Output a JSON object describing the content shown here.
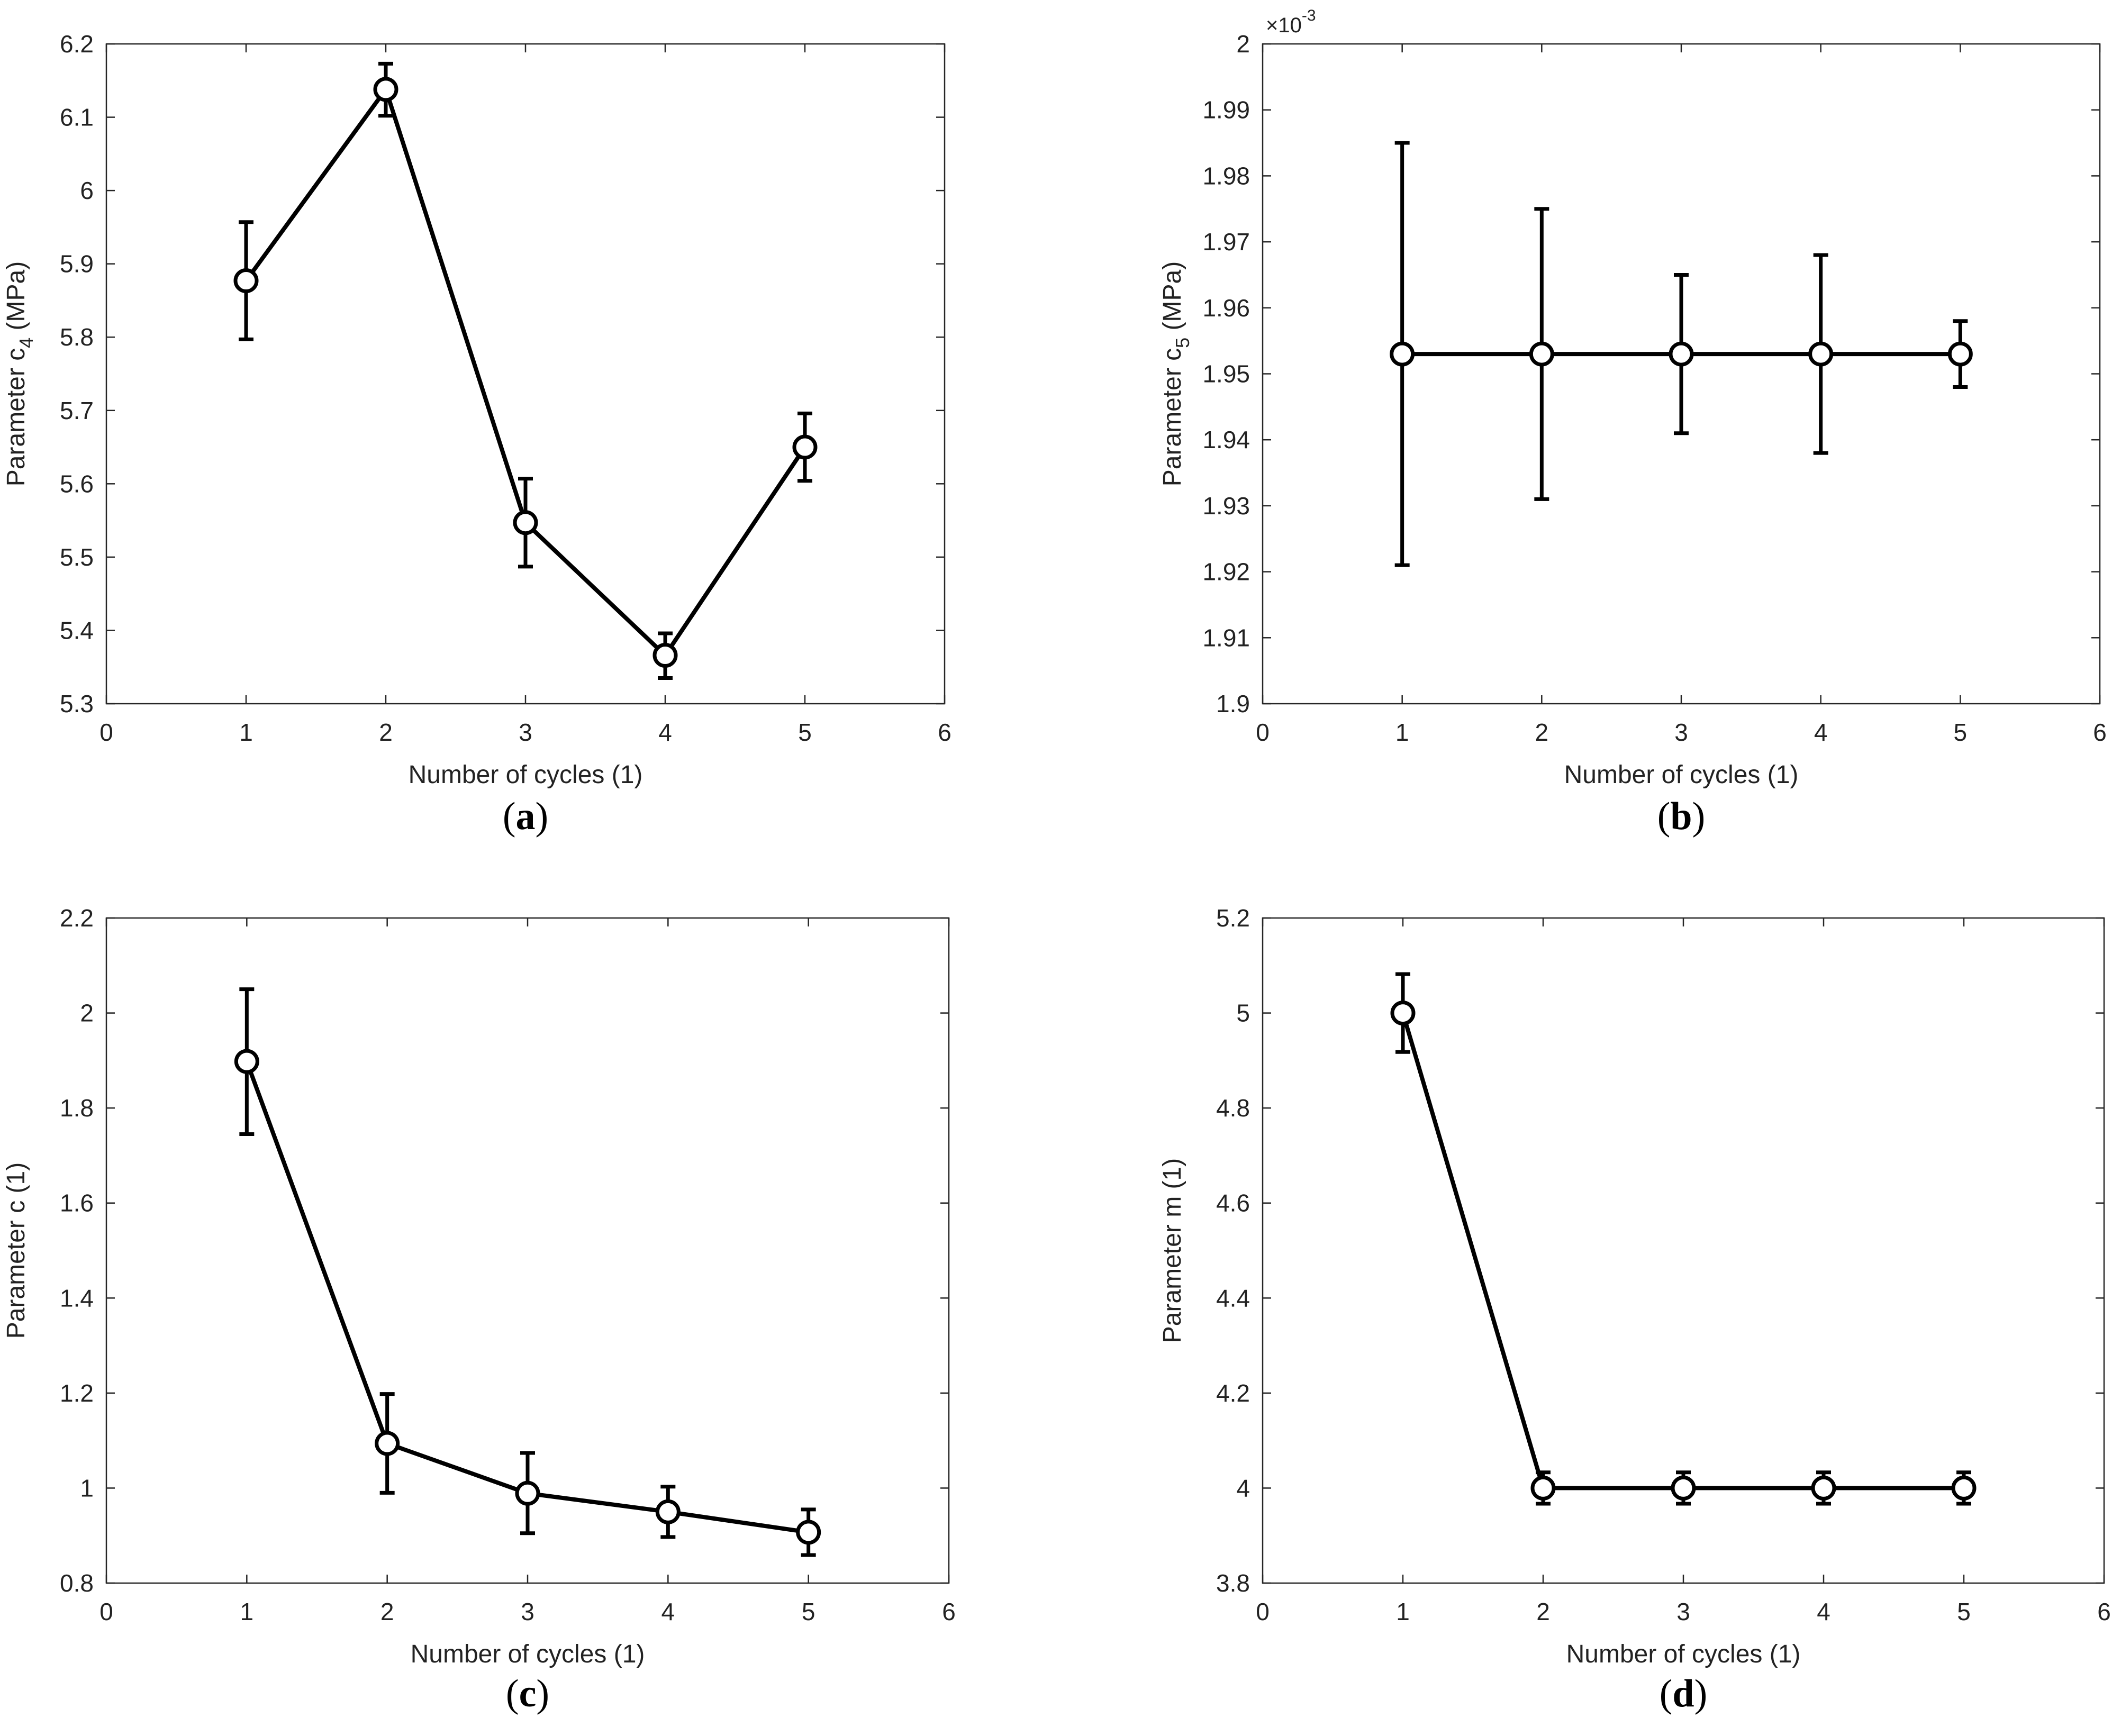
{
  "chart_data": [
    {
      "id": "a",
      "type": "line",
      "panel_label": "a",
      "xlabel": "Number of cycles (1)",
      "ylabel": {
        "main": "Parameter c",
        "sub": "4",
        "unit": " (MPa)"
      },
      "xlim": [
        0,
        6
      ],
      "ylim": [
        5.3,
        6.2
      ],
      "xticks": [
        0,
        1,
        2,
        3,
        4,
        5,
        6
      ],
      "xtick_labels": [
        "0",
        "1",
        "2",
        "3",
        "4",
        "5",
        "6"
      ],
      "yticks": [
        5.3,
        5.4,
        5.5,
        5.6,
        5.7,
        5.8,
        5.9,
        6.0,
        6.1,
        6.2
      ],
      "ytick_labels": [
        "5.3",
        "5.4",
        "5.5",
        "5.6",
        "5.7",
        "5.8",
        "5.9",
        "6",
        "6.1",
        "6.2"
      ],
      "exponent": "",
      "series": [
        {
          "name": "c4",
          "x": [
            1,
            2,
            3,
            4,
            5
          ],
          "y": [
            5.877,
            6.138,
            5.547,
            5.366,
            5.65
          ],
          "err_low": [
            5.797,
            6.102,
            5.487,
            5.335,
            5.604
          ],
          "err_high": [
            5.957,
            6.173,
            5.607,
            5.396,
            5.696
          ]
        }
      ]
    },
    {
      "id": "b",
      "type": "line",
      "panel_label": "b",
      "xlabel": "Number of cycles (1)",
      "ylabel": {
        "main": "Parameter c",
        "sub": "5",
        "unit": " (MPa)"
      },
      "xlim": [
        0,
        6
      ],
      "ylim": [
        1.9,
        2.0
      ],
      "xticks": [
        0,
        1,
        2,
        3,
        4,
        5,
        6
      ],
      "xtick_labels": [
        "0",
        "1",
        "2",
        "3",
        "4",
        "5",
        "6"
      ],
      "yticks": [
        1.9,
        1.91,
        1.92,
        1.93,
        1.94,
        1.95,
        1.96,
        1.97,
        1.98,
        1.99,
        2.0
      ],
      "ytick_labels": [
        "1.9",
        "1.91",
        "1.92",
        "1.93",
        "1.94",
        "1.95",
        "1.96",
        "1.97",
        "1.98",
        "1.99",
        "2"
      ],
      "exponent": "×10",
      "exponent_power": "-3",
      "series": [
        {
          "name": "c5",
          "x": [
            1,
            2,
            3,
            4,
            5
          ],
          "y": [
            1.953,
            1.953,
            1.953,
            1.953,
            1.953
          ],
          "err_low": [
            1.921,
            1.931,
            1.941,
            1.938,
            1.948
          ],
          "err_high": [
            1.985,
            1.975,
            1.965,
            1.968,
            1.958
          ]
        }
      ]
    },
    {
      "id": "c",
      "type": "line",
      "panel_label": "c",
      "xlabel": "Number of cycles (1)",
      "ylabel": {
        "main": "Parameter c (1)",
        "sub": "",
        "unit": ""
      },
      "xlim": [
        0,
        6
      ],
      "ylim": [
        0.8,
        2.2
      ],
      "xticks": [
        0,
        1,
        2,
        3,
        4,
        5,
        6
      ],
      "xtick_labels": [
        "0",
        "1",
        "2",
        "3",
        "4",
        "5",
        "6"
      ],
      "yticks": [
        0.8,
        1.0,
        1.2,
        1.4,
        1.6,
        1.8,
        2.0,
        2.2
      ],
      "ytick_labels": [
        "0.8",
        "1",
        "1.2",
        "1.4",
        "1.6",
        "1.8",
        "2",
        "2.2"
      ],
      "exponent": "",
      "series": [
        {
          "name": "c",
          "x": [
            1,
            2,
            3,
            4,
            5
          ],
          "y": [
            1.898,
            1.094,
            0.989,
            0.95,
            0.907
          ],
          "err_low": [
            1.745,
            0.99,
            0.905,
            0.897,
            0.859
          ],
          "err_high": [
            2.05,
            1.198,
            1.074,
            1.003,
            0.955
          ]
        }
      ]
    },
    {
      "id": "d",
      "type": "line",
      "panel_label": "d",
      "xlabel": "Number of cycles (1)",
      "ylabel": {
        "main": "Parameter m (1)",
        "sub": "",
        "unit": ""
      },
      "xlim": [
        0,
        6
      ],
      "ylim": [
        3.8,
        5.2
      ],
      "xticks": [
        0,
        1,
        2,
        3,
        4,
        5,
        6
      ],
      "xtick_labels": [
        "0",
        "1",
        "2",
        "3",
        "4",
        "5",
        "6"
      ],
      "yticks": [
        3.8,
        4.0,
        4.2,
        4.4,
        4.6,
        4.8,
        5.0,
        5.2
      ],
      "ytick_labels": [
        "3.8",
        "4",
        "4.2",
        "4.4",
        "4.6",
        "4.8",
        "5",
        "5.2"
      ],
      "exponent": "",
      "series": [
        {
          "name": "m",
          "x": [
            1,
            2,
            3,
            4,
            5
          ],
          "y": [
            5.0,
            4.0,
            4.0,
            4.0,
            4.0
          ],
          "err_low": [
            4.918,
            3.967,
            3.967,
            3.967,
            3.967
          ],
          "err_high": [
            5.082,
            4.033,
            4.033,
            4.033,
            4.033
          ]
        }
      ]
    }
  ]
}
